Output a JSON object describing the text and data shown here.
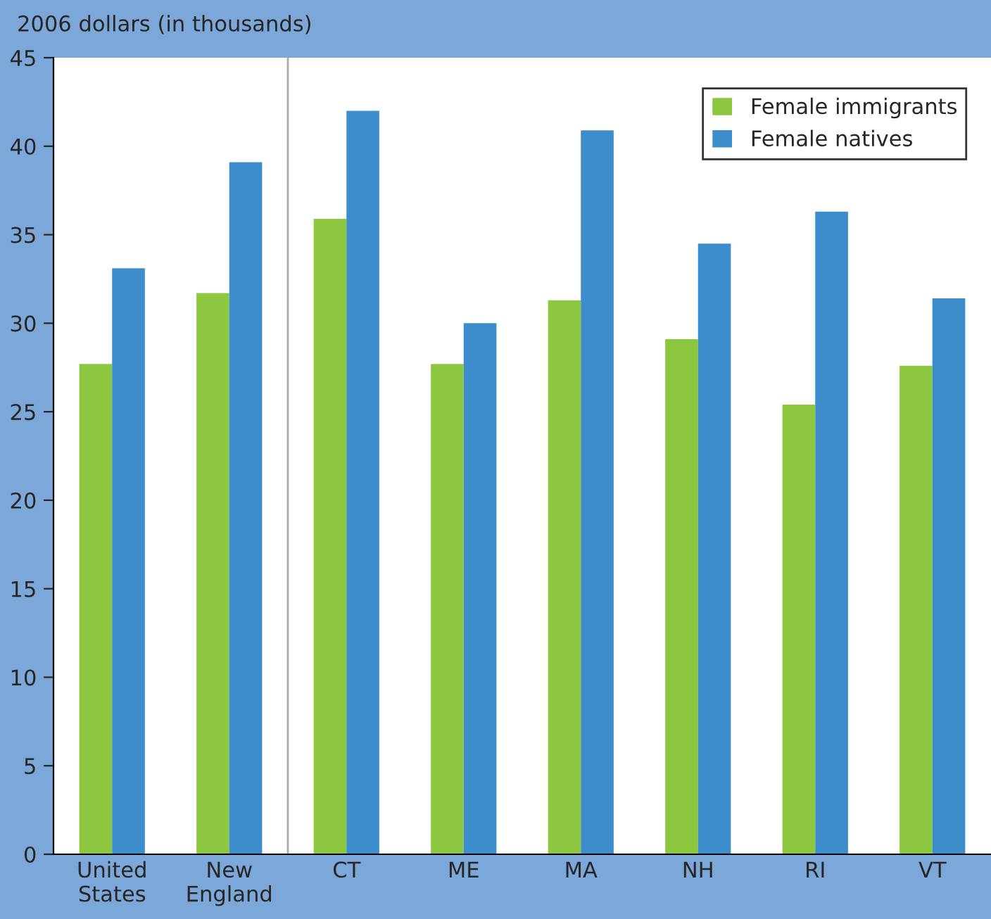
{
  "chart_data": {
    "type": "bar",
    "ylabel": "2006 dollars (in thousands)",
    "categories": [
      "United\nStates",
      "New\nEngland",
      "CT",
      "ME",
      "MA",
      "NH",
      "RI",
      "VT"
    ],
    "series": [
      {
        "name": "Female immigrants",
        "color": "#8dc63f",
        "values": [
          27.7,
          31.7,
          35.9,
          27.7,
          31.3,
          29.1,
          25.4,
          27.6
        ]
      },
      {
        "name": "Female natives",
        "color": "#3d8ccc",
        "values": [
          33.1,
          39.1,
          42.0,
          30.0,
          40.9,
          34.5,
          36.3,
          31.4
        ]
      }
    ],
    "ylim": [
      0,
      45
    ],
    "yticks": [
      0,
      5,
      10,
      15,
      20,
      25,
      30,
      35,
      40,
      45
    ],
    "grid": false,
    "legend": "top right"
  }
}
